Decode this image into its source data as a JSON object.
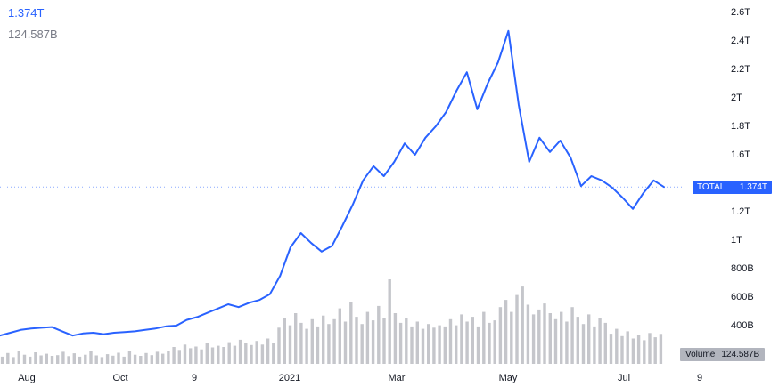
{
  "legend": {
    "price": "1.374T",
    "volume": "124.587B"
  },
  "badge": {
    "label": "TOTAL",
    "price": "1.374T"
  },
  "volume_badge": {
    "label": "Volume",
    "value": "124.587B"
  },
  "colors": {
    "line": "#2962ff",
    "volume_bar": "#9598a1",
    "axis_text": "#131722",
    "badge_bg": "#2962ff",
    "volume_badge_bg": "#b2b5be",
    "legend_muted": "#787b86"
  },
  "chart_data": {
    "type": "line",
    "title": "TOTAL crypto market capitalization with volume",
    "current_value_T": 1.374,
    "current_volume_B": 124.587,
    "series": [
      {
        "name": "TOTAL",
        "unit": "T",
        "values": [
          0.33,
          0.35,
          0.37,
          0.38,
          0.385,
          0.39,
          0.36,
          0.33,
          0.345,
          0.35,
          0.34,
          0.35,
          0.355,
          0.36,
          0.37,
          0.38,
          0.395,
          0.4,
          0.44,
          0.46,
          0.49,
          0.52,
          0.55,
          0.53,
          0.56,
          0.58,
          0.62,
          0.75,
          0.95,
          1.05,
          0.98,
          0.92,
          0.96,
          1.1,
          1.25,
          1.42,
          1.52,
          1.45,
          1.55,
          1.68,
          1.6,
          1.72,
          1.8,
          1.9,
          2.05,
          2.18,
          1.92,
          2.1,
          2.25,
          2.47,
          1.95,
          1.55,
          1.72,
          1.62,
          1.7,
          1.58,
          1.38,
          1.45,
          1.42,
          1.37,
          1.3,
          1.22,
          1.33,
          1.42,
          1.374
        ]
      }
    ],
    "volume_B": [
      30,
      45,
      28,
      55,
      38,
      30,
      48,
      35,
      42,
      33,
      36,
      50,
      32,
      44,
      30,
      38,
      55,
      35,
      28,
      40,
      34,
      46,
      30,
      52,
      38,
      33,
      45,
      36,
      50,
      42,
      55,
      70,
      58,
      80,
      65,
      72,
      60,
      85,
      68,
      75,
      70,
      90,
      75,
      100,
      85,
      78,
      95,
      80,
      105,
      88,
      150,
      190,
      160,
      210,
      170,
      145,
      185,
      155,
      200,
      165,
      185,
      230,
      175,
      255,
      195,
      165,
      215,
      180,
      240,
      190,
      350,
      210,
      170,
      190,
      155,
      175,
      145,
      165,
      150,
      160,
      155,
      185,
      160,
      205,
      175,
      195,
      155,
      215,
      170,
      180,
      235,
      265,
      215,
      285,
      320,
      245,
      205,
      225,
      250,
      210,
      185,
      215,
      175,
      235,
      195,
      165,
      205,
      155,
      190,
      170,
      125,
      145,
      115,
      135,
      105,
      118,
      98,
      128,
      110,
      124
    ],
    "y_axis": {
      "min": 0.2,
      "max": 2.65,
      "grid": false,
      "position": "right",
      "ticks": [
        {
          "label": "2.6T",
          "value": 2.6
        },
        {
          "label": "2.4T",
          "value": 2.4
        },
        {
          "label": "2.2T",
          "value": 2.2
        },
        {
          "label": "2T",
          "value": 2.0
        },
        {
          "label": "1.8T",
          "value": 1.8
        },
        {
          "label": "1.6T",
          "value": 1.6
        },
        {
          "label": "1.2T",
          "value": 1.2
        },
        {
          "label": "1T",
          "value": 1.0
        },
        {
          "label": "800B",
          "value": 0.8
        },
        {
          "label": "600B",
          "value": 0.6
        },
        {
          "label": "400B",
          "value": 0.4
        }
      ]
    },
    "x_axis": {
      "range": "Aug 2020 - Aug 2021",
      "ticks": [
        {
          "label": "Aug",
          "f": 0.039
        },
        {
          "label": "Oct",
          "f": 0.175
        },
        {
          "label": "9",
          "f": 0.283
        },
        {
          "label": "2021",
          "f": 0.422
        },
        {
          "label": "Mar",
          "f": 0.578
        },
        {
          "label": "May",
          "f": 0.74
        },
        {
          "label": "Jul",
          "f": 0.909
        },
        {
          "label": "9",
          "f": 1.019
        }
      ]
    }
  }
}
